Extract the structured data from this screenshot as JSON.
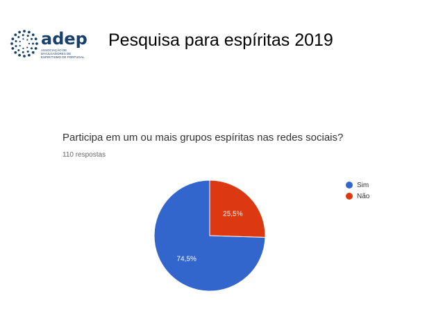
{
  "header": {
    "logo_text": "adep",
    "logo_subtitle": "ASSOCIAÇÃO DE DIVULGADORES DE ESPIRITISMO DE PORTUGAL",
    "page_title": "Pesquisa para espíritas  2019"
  },
  "colors": {
    "sim": "#3366cc",
    "nao": "#dc3912",
    "logo": "#17406d"
  },
  "chart_data": {
    "type": "pie",
    "title": "Participa em um ou mais grupos espíritas nas redes sociais?",
    "subtitle": "110 respostas",
    "categories": [
      "Sim",
      "Não"
    ],
    "values": [
      74.5,
      25.5
    ],
    "labels": [
      "74,5%",
      "25,5%"
    ],
    "legend_position": "right"
  }
}
